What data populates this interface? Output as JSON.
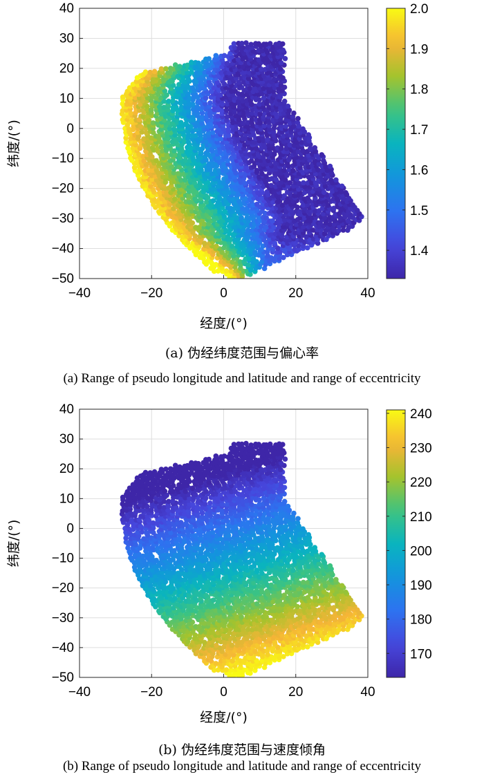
{
  "chart_data": [
    {
      "type": "scatter",
      "xlabel": "经度/(°)",
      "ylabel": "纬度/(°)",
      "xlim": [
        -40,
        40
      ],
      "ylim": [
        -50,
        40
      ],
      "xticks": [
        -40,
        -20,
        0,
        20,
        40
      ],
      "yticks": [
        -50,
        -40,
        -30,
        -20,
        -10,
        0,
        10,
        20,
        30,
        40
      ],
      "grid": true,
      "colorbar": {
        "min": 1.33,
        "max": 2.0,
        "ticks": [
          "1.4",
          "1.5",
          "1.6",
          "1.7",
          "1.8",
          "1.9",
          "2.0"
        ],
        "tick_values": [
          1.4,
          1.5,
          1.6,
          1.7,
          1.8,
          1.9,
          2.0
        ]
      },
      "colormap": "parula",
      "region": {
        "lon_range": [
          -28,
          40
        ],
        "lat_range": [
          -50,
          29
        ]
      },
      "sample_points": [
        {
          "x": -25,
          "y": 5,
          "c": 2.0
        },
        {
          "x": -15,
          "y": -20,
          "c": 1.85
        },
        {
          "x": -5,
          "y": -10,
          "c": 1.62
        },
        {
          "x": 0,
          "y": -30,
          "c": 1.7
        },
        {
          "x": 5,
          "y": 10,
          "c": 1.45
        },
        {
          "x": 10,
          "y": 25,
          "c": 1.38
        },
        {
          "x": 20,
          "y": -15,
          "c": 1.4
        },
        {
          "x": 35,
          "y": -30,
          "c": 1.34
        }
      ],
      "caption_cn": "(a) 伪经纬度范围与偏心率",
      "caption_en": "(a) Range of pseudo longitude and latitude and range of eccentricity"
    },
    {
      "type": "scatter",
      "xlabel": "经度/(°)",
      "ylabel": "纬度/(°)",
      "xlim": [
        -40,
        40
      ],
      "ylim": [
        -50,
        40
      ],
      "xticks": [
        -40,
        -20,
        0,
        20,
        40
      ],
      "yticks": [
        -50,
        -40,
        -30,
        -20,
        -10,
        0,
        10,
        20,
        30,
        40
      ],
      "grid": true,
      "colorbar": {
        "min": 163,
        "max": 241,
        "ticks": [
          "170",
          "180",
          "190",
          "200",
          "210",
          "220",
          "230",
          "240"
        ],
        "tick_values": [
          170,
          180,
          190,
          200,
          210,
          220,
          230,
          240
        ]
      },
      "colormap": "parula",
      "region": {
        "lon_range": [
          -28,
          40
        ],
        "lat_range": [
          -50,
          29
        ]
      },
      "sample_points": [
        {
          "x": -25,
          "y": 5,
          "c": 176
        },
        {
          "x": 0,
          "y": 25,
          "c": 168
        },
        {
          "x": -20,
          "y": -20,
          "c": 195
        },
        {
          "x": 0,
          "y": -10,
          "c": 188
        },
        {
          "x": 10,
          "y": -35,
          "c": 228
        },
        {
          "x": 30,
          "y": -30,
          "c": 236
        },
        {
          "x": 0,
          "y": -48,
          "c": 232
        }
      ],
      "caption_cn": "(b) 伪经纬度范围与速度倾角",
      "caption_en": "(b) Range of pseudo longitude and latitude and range of eccentricity"
    }
  ]
}
